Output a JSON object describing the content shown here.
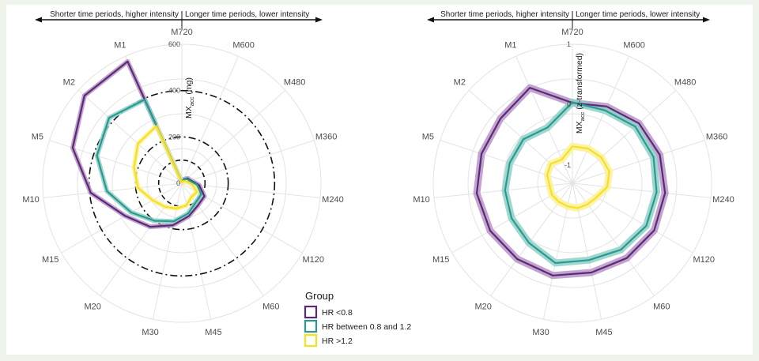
{
  "colors": {
    "hr_low": "#5b2a74",
    "hr_mid": "#2a9a8f",
    "hr_high": "#f6e020",
    "hr_low_fill": "#b894c8",
    "hr_mid_fill": "#8fd0c8",
    "hr_high_fill": "#fbf19a",
    "grid": "#e3e3e3",
    "ref": "#111111"
  },
  "chart_data": [
    {
      "type": "radar",
      "id": "left",
      "banner_left": "Shorter time periods, higher intensity",
      "banner_right": "Longer time periods, lower intensity",
      "categories": [
        "M720",
        "M600",
        "M480",
        "M360",
        "M240",
        "M120",
        "M60",
        "M45",
        "M30",
        "M20",
        "M15",
        "M10",
        "M5",
        "M2",
        "M1"
      ],
      "radial_axis": {
        "title_main": "MX",
        "title_sub": "acc",
        "title_unit": " (mg)",
        "range": [
          0,
          600
        ],
        "ticks": [
          0,
          200,
          400,
          600
        ],
        "tick_labels": [
          "0",
          "200",
          "400",
          "600"
        ]
      },
      "reference_circles": [
        {
          "value": 100,
          "style": "dashed"
        },
        {
          "value": 200,
          "style": "dashdot"
        },
        {
          "value": 400,
          "style": "dashdot"
        }
      ],
      "series": [
        {
          "name": "HR <0.8",
          "color_key": "hr_low",
          "values": [
            5,
            18,
            32,
            40,
            75,
            112,
            118,
            145,
            185,
            232,
            282,
            395,
            495,
            565,
            575
          ]
        },
        {
          "name": "HR between 0.8 and 1.2",
          "color_key": "hr_mid",
          "values": [
            5,
            16,
            28,
            35,
            67,
            96,
            102,
            133,
            168,
            200,
            252,
            325,
            385,
            422,
            395
          ]
        },
        {
          "name": "HR >1.2",
          "color_key": "hr_high",
          "values": [
            4,
            10,
            15,
            22,
            45,
            75,
            72,
            97,
            112,
            125,
            146,
            190,
            217,
            255,
            270
          ]
        }
      ]
    },
    {
      "type": "radar",
      "id": "right",
      "banner_left": "Shorter time periods, higher intensity",
      "banner_right": "Longer time periods, lower intensity",
      "categories": [
        "M720",
        "M600",
        "M480",
        "M360",
        "M240",
        "M120",
        "M60",
        "M45",
        "M30",
        "M20",
        "M15",
        "M10",
        "M5",
        "M2",
        "M1"
      ],
      "radial_axis": {
        "title_main": "MX",
        "title_sub": "acc",
        "title_unit": " (z-transformed)",
        "range": [
          -1.3,
          1
        ],
        "ticks": [
          -1,
          0,
          1
        ],
        "tick_labels": [
          "-1",
          "0",
          "1"
        ]
      },
      "series": [
        {
          "name": "HR <0.8",
          "color_key": "hr_low",
          "values": [
            0.03,
            0.09,
            0.18,
            0.22,
            0.24,
            0.26,
            0.23,
            0.21,
            0.26,
            0.25,
            0.27,
            0.29,
            0.28,
            0.3,
            0.43
          ]
        },
        {
          "name": "HR between 0.8 and 1.2",
          "color_key": "hr_mid",
          "values": [
            0.04,
            0.02,
            0.1,
            0.11,
            0.1,
            0.11,
            0.06,
            0.0,
            0.05,
            -0.08,
            -0.14,
            -0.18,
            -0.21,
            -0.21,
            -0.29
          ]
        },
        {
          "name": "HR >1.2",
          "color_key": "hr_high",
          "values": [
            -0.69,
            -0.67,
            -0.66,
            -0.66,
            -0.72,
            -0.84,
            -0.87,
            -0.88,
            -0.91,
            -0.92,
            -0.91,
            -0.92,
            -0.86,
            -0.82,
            -0.87
          ]
        }
      ]
    }
  ],
  "legend": {
    "title": "Group",
    "items": [
      {
        "label": "HR <0.8",
        "color_key": "hr_low"
      },
      {
        "label": "HR between 0.8 and 1.2",
        "color_key": "hr_mid"
      },
      {
        "label": "HR >1.2",
        "color_key": "hr_high"
      }
    ]
  }
}
